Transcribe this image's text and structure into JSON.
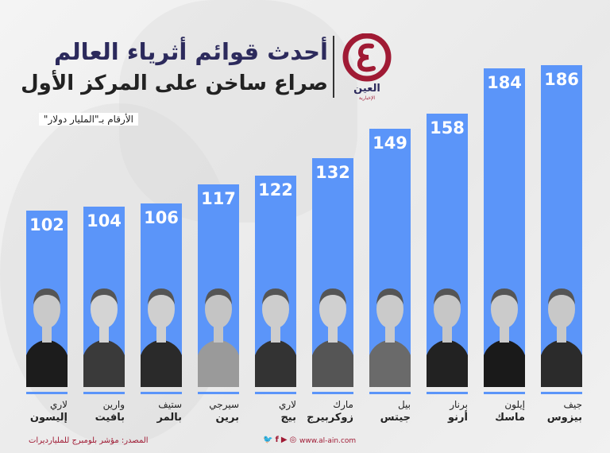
{
  "header": {
    "title": "أحدث قوائم أثرياء العالم",
    "subtitle": "صراع ساخن على المركز الأول",
    "unit_note": "الأرقام بـ\"المليار دولار\""
  },
  "logo": {
    "name": "العين",
    "tagline": "الإخبارية"
  },
  "footer": {
    "source": "المصدر: مؤشر بلومبرج للمليارديرات",
    "website": "www.al-ain.com",
    "social_icons": [
      "twitter-icon",
      "facebook-icon",
      "youtube-icon",
      "instagram-icon"
    ]
  },
  "colors": {
    "bar": "#5b95f9",
    "title": "#2c2a5c",
    "accent": "#a01a34"
  },
  "chart_data": {
    "type": "bar",
    "title": "أحدث قوائم أثرياء العالم",
    "ylabel": "المليار دولار",
    "ylim": [
      0,
      190
    ],
    "categories": [
      {
        "first": "لاري",
        "last": "إليسون"
      },
      {
        "first": "وارين",
        "last": "بافيت"
      },
      {
        "first": "ستيف",
        "last": "بالمر"
      },
      {
        "first": "سيرجي",
        "last": "برين"
      },
      {
        "first": "لاري",
        "last": "بيج"
      },
      {
        "first": "مارك",
        "last": "زوكربيرج"
      },
      {
        "first": "بيل",
        "last": "جيتس"
      },
      {
        "first": "برنار",
        "last": "أرنو"
      },
      {
        "first": "إيلون",
        "last": "ماسك"
      },
      {
        "first": "جيف",
        "last": "بيزوس"
      }
    ],
    "values": [
      102,
      104,
      106,
      117,
      122,
      132,
      149,
      158,
      184,
      186
    ]
  }
}
